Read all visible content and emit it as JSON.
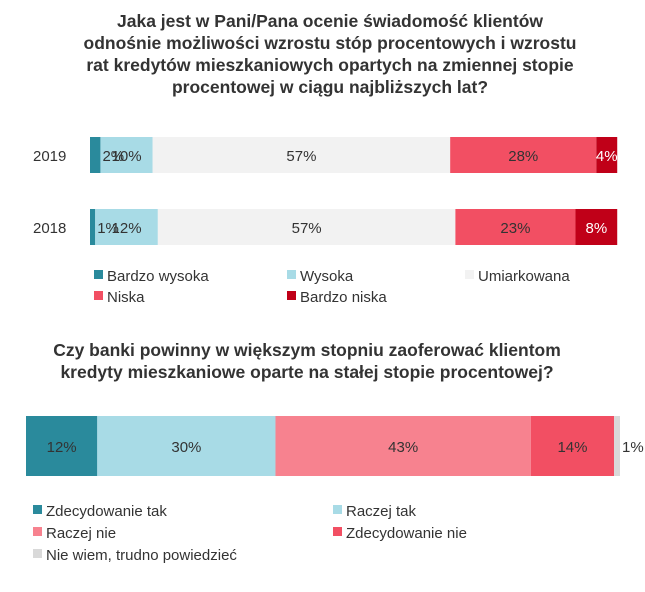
{
  "colors": {
    "title": "#333333",
    "label": "#333333",
    "label_on_dark": "#ffffff"
  },
  "chart_data": [
    {
      "type": "bar",
      "orientation": "horizontal",
      "stacked": true,
      "title": "Jaka jest w Pani/Pana ocenie świadomość klientów odnośnie możliwości wzrostu stóp procentowych i wzrostu rat kredytów mieszkaniowych opartych na zmiennej stopie procentowej w ciągu  najbliższych lat?",
      "title_lines": [
        "Jaka jest w Pani/Pana ocenie świadomość klientów",
        "odnośnie możliwości wzrostu stóp procentowych i wzrostu",
        "rat kredytów mieszkaniowych opartych na zmiennej stopie",
        "procentowej w ciągu  najbliższych lat?"
      ],
      "categories": [
        "2019",
        "2018"
      ],
      "xlim": [
        0,
        100
      ],
      "unit": "%",
      "series": [
        {
          "name": "Bardzo wysoka",
          "color": "#2a8a9c",
          "values": [
            2,
            1
          ],
          "labels": [
            "2%",
            "1%"
          ]
        },
        {
          "name": "Wysoka",
          "color": "#a8dbe6",
          "values": [
            10,
            12
          ],
          "labels": [
            "10%",
            "12%"
          ]
        },
        {
          "name": "Umiarkowana",
          "color": "#f2f2f2",
          "values": [
            57,
            57
          ],
          "labels": [
            "57%",
            "57%"
          ]
        },
        {
          "name": "Niska",
          "color": "#f24f63",
          "values": [
            28,
            23
          ],
          "labels": [
            "28%",
            "23%"
          ]
        },
        {
          "name": "Bardzo niska",
          "color": "#c00018",
          "values": [
            4,
            8
          ],
          "labels": [
            "4%",
            "8%"
          ]
        }
      ],
      "legend": "bottom"
    },
    {
      "type": "bar",
      "orientation": "horizontal",
      "stacked": true,
      "title": "Czy banki powinny w większym stopniu zaoferować klientom kredyty mieszkaniowe oparte na stałej stopie procentowej?",
      "title_lines": [
        "Czy banki powinny w większym stopniu zaoferować klientom",
        "kredyty mieszkaniowe oparte na stałej stopie procentowej?"
      ],
      "categories": [
        ""
      ],
      "xlim": [
        0,
        100
      ],
      "unit": "%",
      "series": [
        {
          "name": "Zdecydowanie tak",
          "color": "#2a8a9c",
          "values": [
            12
          ],
          "labels": [
            "12%"
          ]
        },
        {
          "name": "Raczej tak",
          "color": "#a8dbe6",
          "values": [
            30
          ],
          "labels": [
            "30%"
          ]
        },
        {
          "name": "Raczej nie",
          "color": "#f7828f",
          "values": [
            43
          ],
          "labels": [
            "43%"
          ]
        },
        {
          "name": "Zdecydowanie nie",
          "color": "#f24f63",
          "values": [
            14
          ],
          "labels": [
            "14%"
          ]
        },
        {
          "name": "Nie wiem, trudno powiedzieć",
          "color": "#d9d9d9",
          "values": [
            1
          ],
          "labels": [
            "1%"
          ]
        }
      ],
      "legend": "bottom"
    }
  ]
}
